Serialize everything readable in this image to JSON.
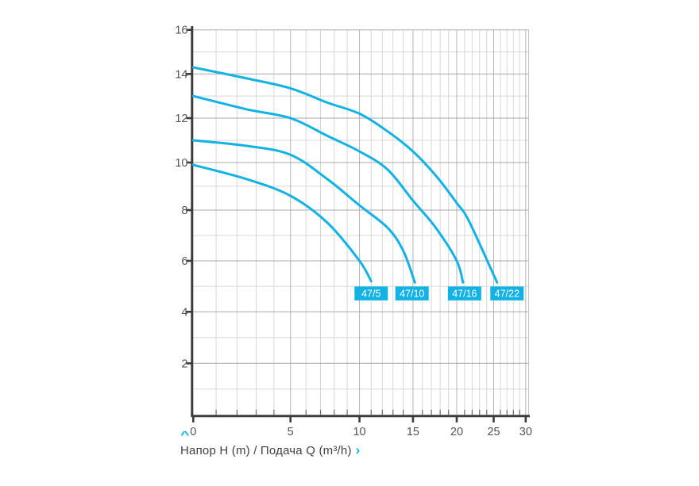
{
  "page": {
    "background": "#ffffff"
  },
  "caption": {
    "text": "Напор H (m) / Подача Q (m³/h)",
    "up_icon": "^",
    "right_icon": "›",
    "accent_color": "#12b2e4"
  },
  "chart_data": {
    "type": "line",
    "title": "",
    "xlabel": "Подача Q (m³/h)",
    "ylabel": "Напор H (m)",
    "x_axis": {
      "ticks": [
        0,
        5,
        10,
        15,
        20,
        25,
        30
      ],
      "range": [
        0,
        30
      ],
      "minor_step": 1,
      "scale": "compressed-log: pos ∝ ln(1 + Q/10)"
    },
    "y_axis": {
      "ticks": [
        2,
        4,
        6,
        8,
        10,
        12,
        14,
        16
      ],
      "range": [
        0,
        16
      ],
      "minor_step": 1,
      "scale": "linear"
    },
    "grid": "on",
    "line_color": "#12b2e4",
    "line_width": 3,
    "label_bg": "#12b2e4",
    "label_text_color": "#ffffff",
    "axis_color": "#3c3c3c",
    "tick_label_color": "#53535a",
    "grid_minor_color": "#d8d8d8",
    "grid_major_color": "#a9a9a9",
    "series": [
      {
        "name": "47/22",
        "points": [
          [
            0,
            14.3
          ],
          [
            2.5,
            13.8
          ],
          [
            5,
            13.35
          ],
          [
            7.5,
            12.7
          ],
          [
            10,
            12.2
          ],
          [
            12.5,
            11.4
          ],
          [
            15,
            10.5
          ],
          [
            17.5,
            9.45
          ],
          [
            20,
            8.3
          ],
          [
            21.6,
            7.55
          ],
          [
            25.5,
            5.15
          ]
        ],
        "label": "47/22",
        "label_pos": [
          27.0,
          4.72
        ]
      },
      {
        "name": "47/16",
        "points": [
          [
            0,
            13.0
          ],
          [
            2.5,
            12.4
          ],
          [
            5,
            12.0
          ],
          [
            7.5,
            11.2
          ],
          [
            10,
            10.5
          ],
          [
            12.5,
            9.7
          ],
          [
            15,
            8.4
          ],
          [
            17.5,
            7.3
          ],
          [
            20,
            6.0
          ],
          [
            20.8,
            5.15
          ]
        ],
        "label": "47/16",
        "label_pos": [
          21.0,
          4.72
        ]
      },
      {
        "name": "47/10",
        "points": [
          [
            0,
            11.0
          ],
          [
            2.5,
            10.75
          ],
          [
            5,
            10.35
          ],
          [
            7.5,
            9.3
          ],
          [
            10,
            8.2
          ],
          [
            12.5,
            7.3
          ],
          [
            14,
            6.4
          ],
          [
            15.2,
            5.15
          ]
        ],
        "label": "47/10",
        "label_pos": [
          14.9,
          4.72
        ]
      },
      {
        "name": "47/5",
        "points": [
          [
            0,
            9.9
          ],
          [
            2.5,
            9.3
          ],
          [
            5,
            8.6
          ],
          [
            7.5,
            7.5
          ],
          [
            10,
            6.0
          ],
          [
            11,
            5.2
          ]
        ],
        "label": "47/5",
        "label_pos": [
          11.0,
          4.72
        ]
      }
    ]
  }
}
